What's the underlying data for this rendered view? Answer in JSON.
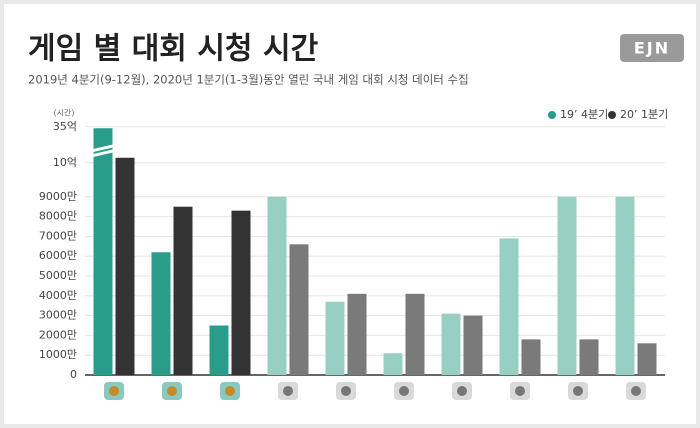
{
  "chart_data": {
    "type": "bar",
    "title": "게임 별 대회 시청 시간",
    "subtitle": "2019년 4분기(9-12월), 2020년 1분기(1-3월)동안 열린 국내 게임 대회 시청 데이터 수집",
    "logo": "EJN",
    "y_label": "(시간)",
    "categories": [
      null,
      null,
      null,
      null,
      null,
      null,
      null,
      null,
      null,
      null
    ],
    "series": [
      {
        "name": "19’ 4분기",
        "color": "#2a9d8a",
        "colors": [
          "#2a9d8a",
          "#2a9d8a",
          "#2a9d8a",
          "#97cfc2",
          "#97cfc2",
          "#97cfc2",
          "#97cfc2",
          "#97cfc2",
          "#97cfc2",
          "#97cfc2"
        ],
        "values": [
          3400000000,
          62000000,
          25000000,
          92000000,
          37000000,
          11000000,
          31000000,
          69000000,
          94000000,
          92000000
        ]
      },
      {
        "name": "20’ 1분기",
        "color": "#333333",
        "colors": [
          "#333333",
          "#333333",
          "#333333",
          "#7a7a7a",
          "#7a7a7a",
          "#7a7a7a",
          "#7a7a7a",
          "#7a7a7a",
          "#7a7a7a",
          "#7a7a7a"
        ],
        "values": [
          1350000000,
          85000000,
          83000000,
          66000000,
          41000000,
          41000000,
          30000000,
          18000000,
          18000000,
          16000000
        ]
      }
    ],
    "ylim": [
      0,
      3500000000
    ],
    "yticks": [
      0,
      {
        "value": 10000000,
        "label": "1000만"
      },
      {
        "value": 20000000,
        "label": "2000만"
      },
      {
        "value": 30000000,
        "label": "3000만"
      },
      {
        "value": 40000000,
        "label": "4000만"
      },
      {
        "value": 50000000,
        "label": "5000만"
      },
      {
        "value": 60000000,
        "label": "6000만"
      },
      {
        "value": 70000000,
        "label": "7000만"
      },
      {
        "value": 80000000,
        "label": "8000만"
      },
      {
        "value": 90000000,
        "label": "9000만"
      },
      {
        "value": 1000000000,
        "label": "10억"
      },
      {
        "value": 3500000000,
        "label": "35억"
      }
    ],
    "axis_break": true,
    "grid": true,
    "legend": "top-right"
  }
}
